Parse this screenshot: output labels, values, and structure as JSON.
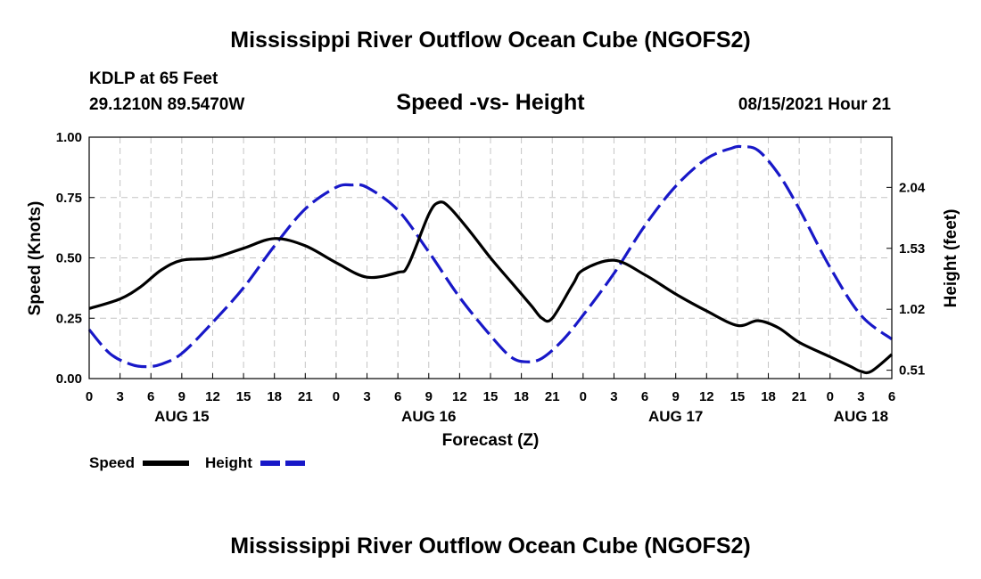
{
  "page": {
    "title": "Mississippi River Outflow Ocean Cube (NGOFS2)",
    "footer_title": "Mississippi River Outflow Ocean Cube (NGOFS2)",
    "station_label": "KDLP at 65 Feet",
    "coords": "29.1210N  89.5470W",
    "datetime": "08/15/2021 Hour 21"
  },
  "chart_data": {
    "type": "line",
    "title": "Speed -vs- Height",
    "xlabel": "Forecast (Z)",
    "ylabel_left": "Speed (Knots)",
    "ylabel_right": "Height (feet)",
    "x_range_hours": [
      0,
      78
    ],
    "ylim_left": [
      0,
      1.0
    ],
    "ylim_right": [
      0.44,
      2.46
    ],
    "left_ticks": [
      "0.00",
      "0.25",
      "0.50",
      "0.75",
      "1.00"
    ],
    "right_ticks": [
      "0.51",
      "1.02",
      "1.53",
      "2.04"
    ],
    "x_tick_labels": [
      "0",
      "3",
      "6",
      "9",
      "12",
      "15",
      "18",
      "21",
      "0",
      "3",
      "6",
      "9",
      "12",
      "15",
      "18",
      "21",
      "0",
      "3",
      "6",
      "9",
      "12",
      "15",
      "18",
      "21",
      "0",
      "3",
      "6"
    ],
    "day_labels": [
      {
        "label": "AUG 15",
        "hour": 9
      },
      {
        "label": "AUG 16",
        "hour": 33
      },
      {
        "label": "AUG 17",
        "hour": 57
      },
      {
        "label": "AUG 18",
        "hour": 75
      }
    ],
    "grid": true,
    "legend": [
      "Speed",
      "Height"
    ],
    "series": [
      {
        "name": "Speed",
        "axis": "left",
        "color": "#000000",
        "style": "solid",
        "x": [
          0,
          3,
          5,
          7,
          9,
          12,
          15,
          18,
          21,
          24,
          27,
          30,
          31,
          33,
          34,
          35,
          37,
          39,
          41,
          43,
          44,
          45,
          47,
          48,
          51,
          54,
          57,
          60,
          63,
          65,
          67,
          69,
          72,
          74,
          75,
          76,
          78
        ],
        "values": [
          0.29,
          0.33,
          0.38,
          0.45,
          0.49,
          0.5,
          0.54,
          0.58,
          0.55,
          0.48,
          0.42,
          0.44,
          0.47,
          0.68,
          0.73,
          0.71,
          0.61,
          0.5,
          0.4,
          0.3,
          0.25,
          0.25,
          0.39,
          0.45,
          0.49,
          0.43,
          0.35,
          0.28,
          0.22,
          0.24,
          0.21,
          0.15,
          0.09,
          0.05,
          0.03,
          0.03,
          0.1
        ]
      },
      {
        "name": "Height",
        "axis": "right",
        "color": "#1818c8",
        "style": "dashed",
        "x": [
          0,
          2,
          4,
          5.5,
          7,
          9,
          12,
          15,
          18,
          21,
          24,
          25.5,
          27,
          30,
          33,
          36,
          39,
          41,
          42.5,
          44,
          46,
          48,
          51,
          54,
          57,
          60,
          62.5,
          63.5,
          65,
          67,
          69,
          72,
          75,
          78
        ],
        "values": [
          0.85,
          0.65,
          0.56,
          0.54,
          0.56,
          0.65,
          0.91,
          1.2,
          1.55,
          1.86,
          2.04,
          2.06,
          2.04,
          1.85,
          1.5,
          1.12,
          0.8,
          0.62,
          0.58,
          0.61,
          0.76,
          0.97,
          1.32,
          1.72,
          2.05,
          2.28,
          2.37,
          2.38,
          2.35,
          2.15,
          1.86,
          1.37,
          0.97,
          0.77
        ]
      }
    ]
  }
}
